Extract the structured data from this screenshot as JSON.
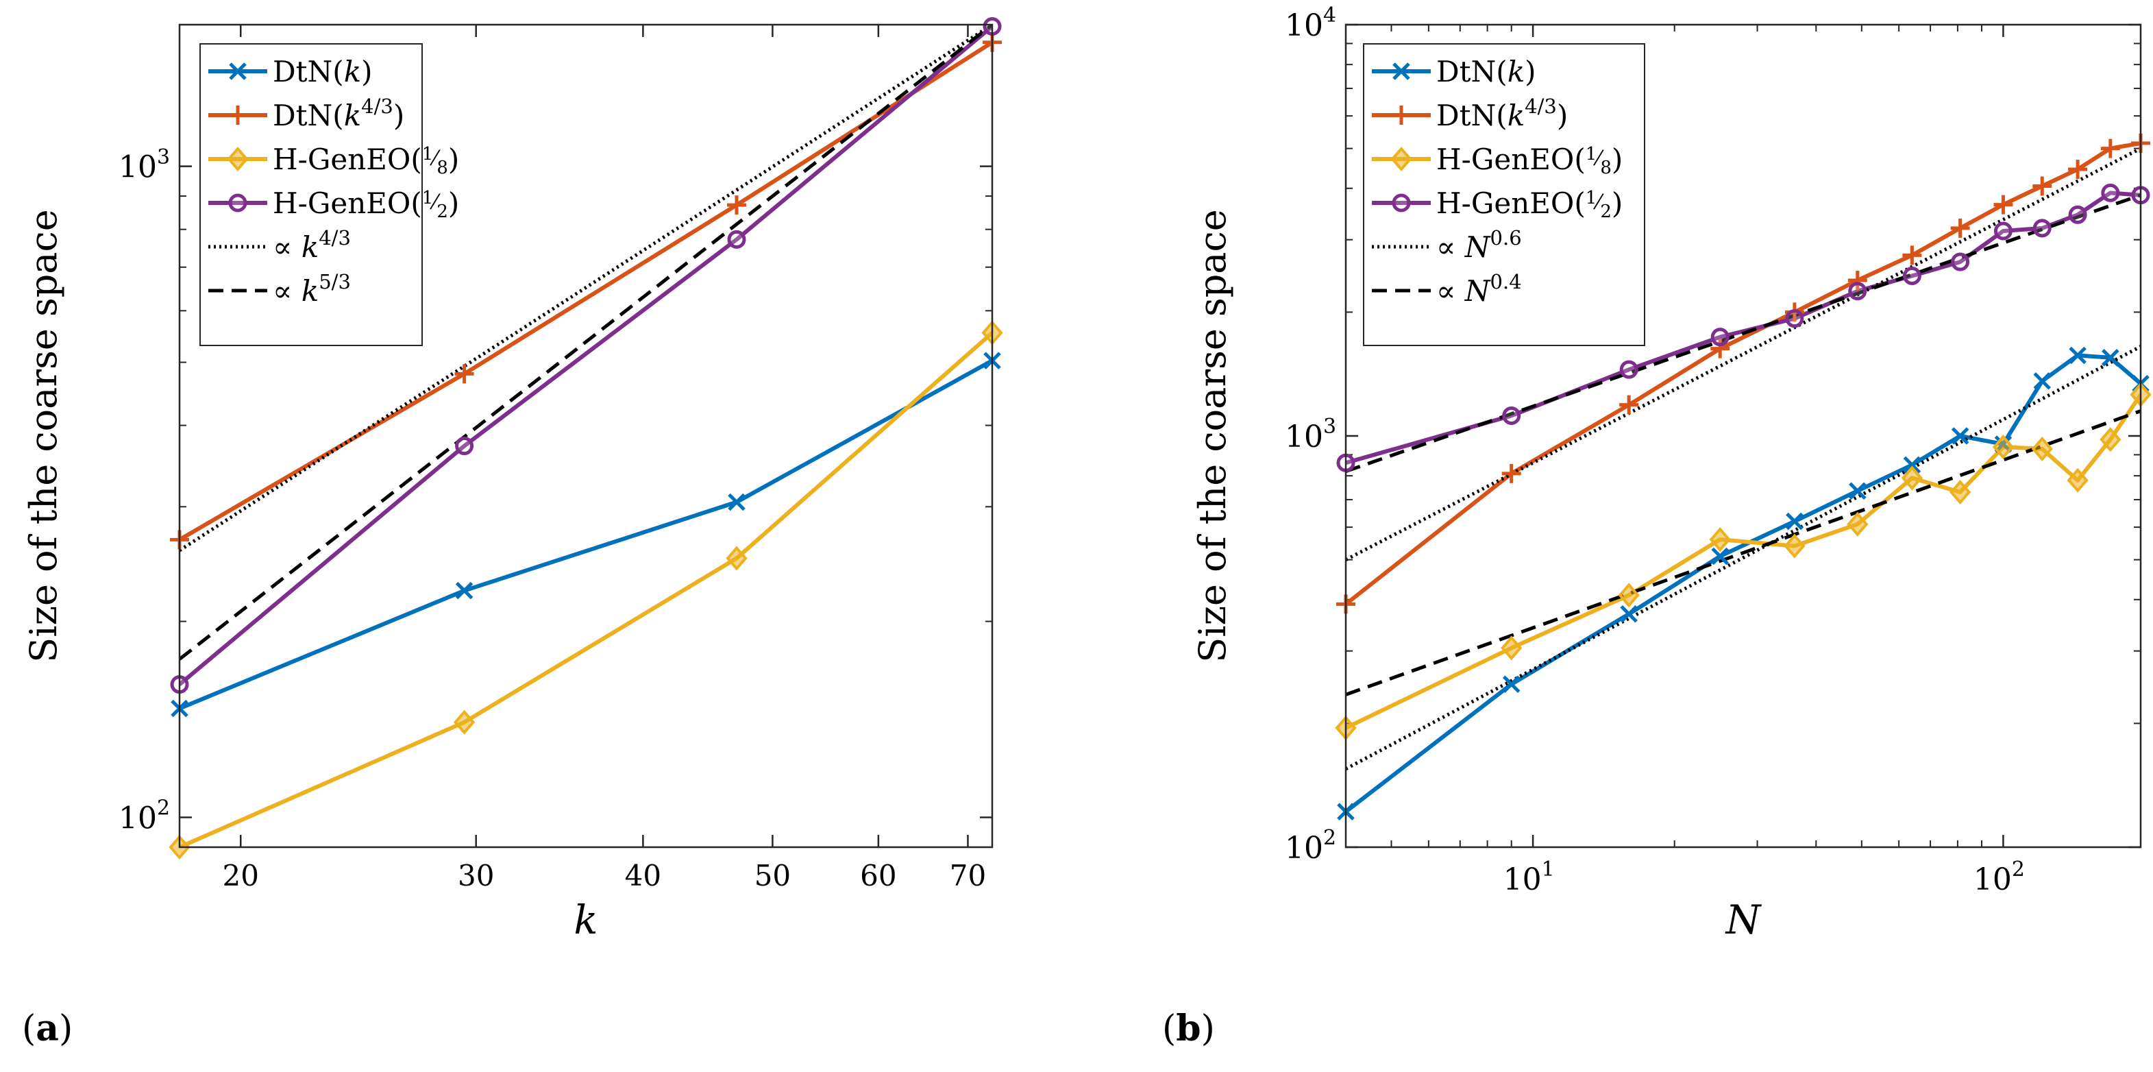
{
  "figure": {
    "panel_labels": [
      "(a)",
      "(b)"
    ]
  },
  "chart_data": [
    {
      "type": "line",
      "panel_label": "(a)",
      "xscale": "log",
      "yscale": "log",
      "xlabel": "k",
      "ylabel": "Size of the coarse space",
      "xlim": [
        18,
        73
      ],
      "ylim": [
        90,
        1650
      ],
      "xticks": [
        20,
        30,
        40,
        50,
        60,
        70
      ],
      "xtick_labels": [
        "20",
        "30",
        "40",
        "50",
        "60",
        "70"
      ],
      "yticks": [
        100,
        1000
      ],
      "ytick_labels": [
        {
          "base": "10",
          "exp": "2"
        },
        {
          "base": "10",
          "exp": "3"
        }
      ],
      "legend_position": "top-left",
      "series": [
        {
          "name": "DtN(k)",
          "legend_main": "DtN(",
          "legend_italic": "k",
          "legend_tail": ")",
          "color": "#0072BD",
          "marker": "x",
          "style": "solid",
          "x": [
            18,
            29.4,
            47,
            73
          ],
          "y": [
            147,
            223,
            305,
            503
          ]
        },
        {
          "name": "DtN(k^{4/3})",
          "legend_main": "DtN(",
          "legend_italic": "k",
          "legend_sup": "4/3",
          "legend_tail": ")",
          "color": "#D95319",
          "marker": "+",
          "style": "solid",
          "x": [
            18,
            29.4,
            47,
            73
          ],
          "y": [
            267,
            480,
            872,
            1550
          ]
        },
        {
          "name": "H-GenEO(1/8)",
          "legend_main": "H-GenEO(",
          "legend_frac": [
            "1",
            "8"
          ],
          "legend_tail": ")",
          "color": "#EDB120",
          "marker": "diamond",
          "style": "solid",
          "x": [
            18,
            29.4,
            47,
            73
          ],
          "y": [
            90,
            140,
            250,
            555
          ]
        },
        {
          "name": "H-GenEO(1/2)",
          "legend_main": "H-GenEO(",
          "legend_frac": [
            "1",
            "2"
          ],
          "legend_tail": ")",
          "color": "#7E2F8E",
          "marker": "o",
          "style": "solid",
          "x": [
            18,
            29.4,
            47,
            73
          ],
          "y": [
            160,
            372,
            772,
            1640
          ]
        },
        {
          "name": "∝ k^{4/3}",
          "legend_main": "∝ ",
          "legend_italic": "k",
          "legend_sup": "4/3",
          "legend_tail": "",
          "color": "#000000",
          "marker": "none",
          "style": "dotted",
          "x": [
            18,
            73
          ],
          "y": [
            257,
            1650
          ]
        },
        {
          "name": "∝ k^{5/3}",
          "legend_main": "∝ ",
          "legend_italic": "k",
          "legend_sup": "5/3",
          "legend_tail": "",
          "color": "#000000",
          "marker": "none",
          "style": "dashed",
          "x": [
            18,
            73
          ],
          "y": [
            175,
            1650
          ]
        }
      ]
    },
    {
      "type": "line",
      "panel_label": "(b)",
      "xscale": "log",
      "yscale": "log",
      "xlabel": "N",
      "ylabel": "Size of the coarse space",
      "xlim": [
        4,
        196
      ],
      "ylim": [
        100,
        10000
      ],
      "xticks": [
        10,
        100
      ],
      "xtick_labels": [
        {
          "base": "10",
          "exp": "1"
        },
        {
          "base": "10",
          "exp": "2"
        }
      ],
      "yticks": [
        100,
        1000,
        10000
      ],
      "ytick_labels": [
        {
          "base": "10",
          "exp": "2"
        },
        {
          "base": "10",
          "exp": "3"
        },
        {
          "base": "10",
          "exp": "4"
        }
      ],
      "legend_position": "top-left",
      "series": [
        {
          "name": "DtN(k)",
          "legend_main": "DtN(",
          "legend_italic": "k",
          "legend_tail": ")",
          "color": "#0072BD",
          "marker": "x",
          "style": "solid",
          "x": [
            4,
            9,
            16,
            25,
            36,
            49,
            64,
            81,
            100,
            121,
            144,
            169,
            196
          ],
          "y": [
            122,
            249,
            369,
            510,
            620,
            735,
            850,
            1000,
            955,
            1360,
            1570,
            1550,
            1340
          ]
        },
        {
          "name": "DtN(k^{4/3})",
          "legend_main": "DtN(",
          "legend_italic": "k",
          "legend_sup": "4/3",
          "legend_tail": ")",
          "color": "#D95319",
          "marker": "+",
          "style": "solid",
          "x": [
            4,
            9,
            16,
            25,
            36,
            49,
            64,
            81,
            100,
            121,
            144,
            169,
            196
          ],
          "y": [
            390,
            810,
            1190,
            1630,
            2000,
            2390,
            2750,
            3200,
            3650,
            4050,
            4450,
            5000,
            5150
          ]
        },
        {
          "name": "H-GenEO(1/8)",
          "legend_main": "H-GenEO(",
          "legend_frac": [
            "1",
            "8"
          ],
          "legend_tail": ")",
          "color": "#EDB120",
          "marker": "diamond",
          "style": "solid",
          "x": [
            4,
            9,
            16,
            25,
            36,
            49,
            64,
            81,
            100,
            121,
            144,
            169,
            196
          ],
          "y": [
            195,
            305,
            410,
            560,
            540,
            610,
            790,
            730,
            940,
            930,
            780,
            980,
            1260
          ]
        },
        {
          "name": "H-GenEO(1/2)",
          "legend_main": "H-GenEO(",
          "legend_frac": [
            "1",
            "2"
          ],
          "legend_tail": ")",
          "color": "#7E2F8E",
          "marker": "o",
          "style": "solid",
          "x": [
            4,
            9,
            16,
            25,
            36,
            49,
            64,
            81,
            100,
            121,
            144,
            169,
            196
          ],
          "y": [
            860,
            1120,
            1450,
            1740,
            1930,
            2250,
            2450,
            2650,
            3150,
            3200,
            3450,
            3900,
            3850
          ]
        },
        {
          "name": "∝ N^{0.6}",
          "legend_main": "∝ ",
          "legend_italic": "N",
          "legend_sup": "0.6",
          "legend_tail": "",
          "color": "#000000",
          "marker": "none",
          "style": "dotted",
          "segments": [
            {
              "x": [
                4,
                196
              ],
              "y": [
                500,
                5000
              ]
            },
            {
              "x": [
                4,
                196
              ],
              "y": [
                155,
                1650
              ]
            }
          ]
        },
        {
          "name": "∝ N^{0.4}",
          "legend_main": "∝ ",
          "legend_italic": "N",
          "legend_sup": "0.4",
          "legend_tail": "",
          "color": "#000000",
          "marker": "none",
          "style": "dashed",
          "segments": [
            {
              "x": [
                4,
                196
              ],
              "y": [
                820,
                3850
              ]
            },
            {
              "x": [
                4,
                196
              ],
              "y": [
                235,
                1150
              ]
            }
          ]
        }
      ]
    }
  ]
}
